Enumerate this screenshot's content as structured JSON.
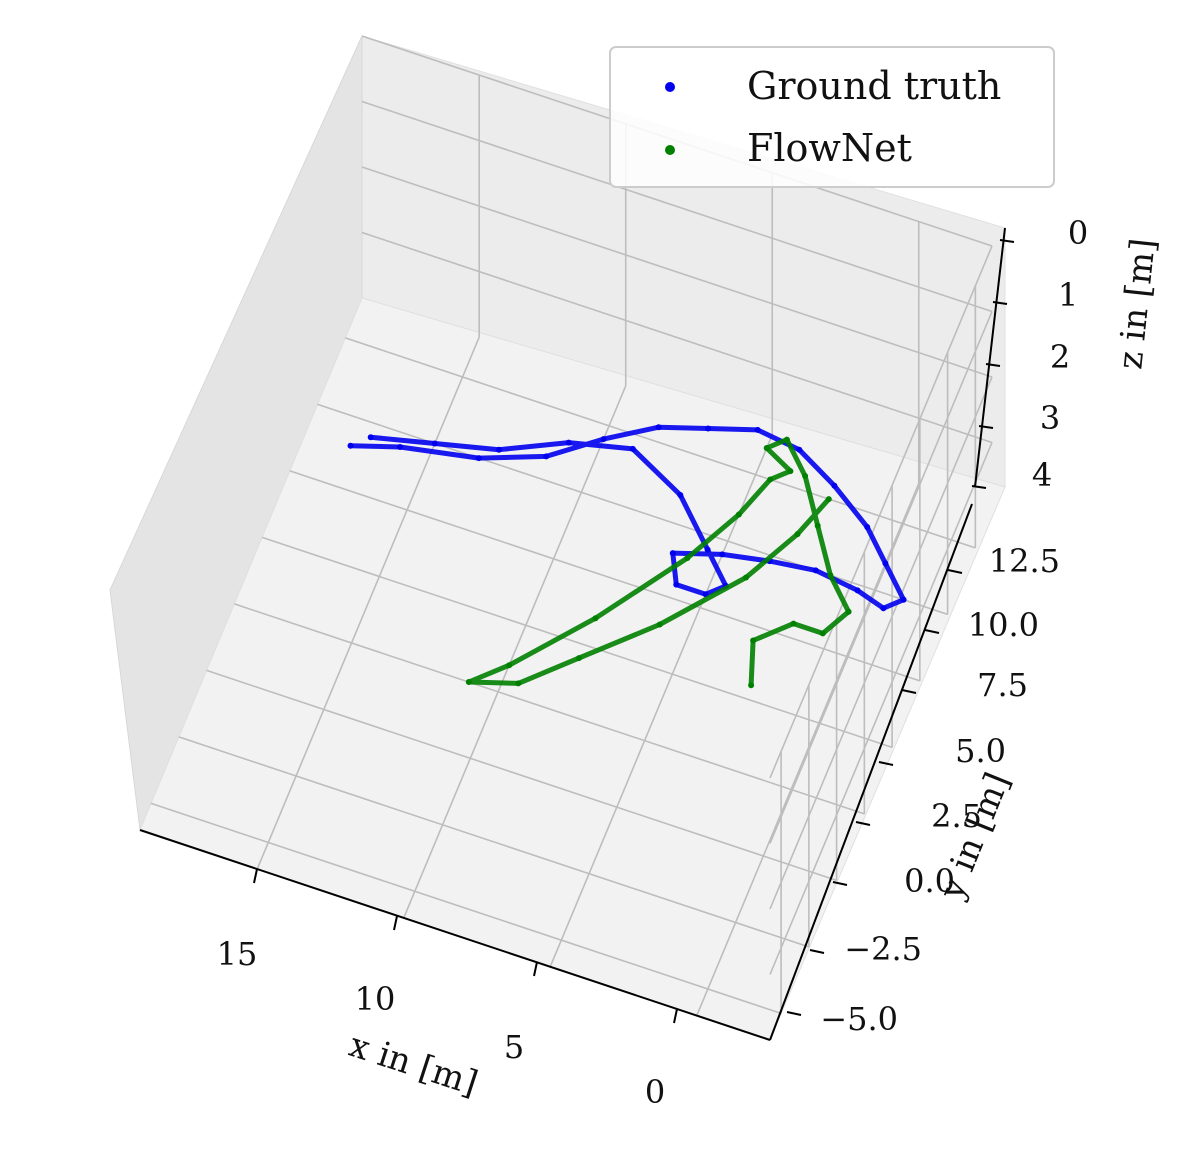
{
  "chart_data": {
    "type": "scatter",
    "projection": "3d",
    "title": "",
    "xlabel": "x in [m]",
    "ylabel": "y in [m]",
    "zlabel": "z in [m]",
    "xlim": [
      -2.5,
      19
    ],
    "ylim": [
      -6,
      14
    ],
    "zlim": [
      0,
      4
    ],
    "z_inverted": true,
    "grid": true,
    "legend_position": "top-right",
    "x_ticks": [
      "15",
      "10",
      "5",
      "0"
    ],
    "y_ticks": [
      "12.5",
      "10.0",
      "7.5",
      "5.0",
      "2.5",
      "0.0",
      "−2.5",
      "−5.0"
    ],
    "z_ticks": [
      "0",
      "1",
      "2",
      "3",
      "4"
    ],
    "series": [
      {
        "name": "Ground truth",
        "color": "#0000ee",
        "points": [
          [
            17.5,
            9.0,
            4.0
          ],
          [
            16.0,
            9.5,
            4.0
          ],
          [
            13.5,
            10.0,
            4.0
          ],
          [
            11.5,
            10.8,
            4.0
          ],
          [
            10.0,
            12.0,
            4.0
          ],
          [
            8.5,
            13.0,
            4.0
          ],
          [
            7.0,
            13.5,
            4.0
          ],
          [
            5.5,
            14.0,
            4.0
          ],
          [
            4.0,
            13.8,
            4.0
          ],
          [
            2.5,
            13.0,
            4.0
          ],
          [
            1.0,
            12.0,
            4.0
          ],
          [
            0.0,
            11.0,
            4.0
          ],
          [
            -1.0,
            10.0,
            4.0
          ],
          [
            -0.5,
            9.5,
            4.0
          ],
          [
            0.5,
            9.8,
            4.0
          ],
          [
            2.0,
            10.0,
            4.0
          ],
          [
            3.5,
            9.8,
            4.0
          ],
          [
            5.0,
            9.5,
            4.0
          ],
          [
            6.5,
            9.0,
            4.0
          ],
          [
            6.0,
            8.0,
            4.0
          ],
          [
            5.0,
            8.0,
            4.0
          ],
          [
            4.5,
            8.5,
            4.0
          ],
          [
            5.5,
            9.5,
            4.0
          ],
          [
            7.0,
            11.0,
            4.0
          ],
          [
            9.0,
            12.0,
            4.0
          ],
          [
            11.0,
            11.5,
            4.0
          ],
          [
            13.0,
            10.5,
            4.0
          ],
          [
            15.0,
            10.0,
            4.0
          ],
          [
            17.0,
            9.5,
            4.0
          ]
        ]
      },
      {
        "name": "FlowNet",
        "color": "#008000",
        "points": [
          [
            2.5,
            5.5,
            4.0
          ],
          [
            3.0,
            7.0,
            4.0
          ],
          [
            2.0,
            8.0,
            4.0
          ],
          [
            1.0,
            8.0,
            4.0
          ],
          [
            0.5,
            9.0,
            4.0
          ],
          [
            1.5,
            10.0,
            4.0
          ],
          [
            2.5,
            11.5,
            4.0
          ],
          [
            3.5,
            13.0,
            4.0
          ],
          [
            4.5,
            14.0,
            4.0
          ],
          [
            5.0,
            13.5,
            4.0
          ],
          [
            4.0,
            13.0,
            4.0
          ],
          [
            4.5,
            12.5,
            4.0
          ],
          [
            5.0,
            11.0,
            4.0
          ],
          [
            6.0,
            9.0,
            4.0
          ],
          [
            8.0,
            6.0,
            4.0
          ],
          [
            10.0,
            3.5,
            4.0
          ],
          [
            11.0,
            2.5,
            4.0
          ],
          [
            9.5,
            3.0,
            4.0
          ],
          [
            8.0,
            4.5,
            4.0
          ],
          [
            6.0,
            6.5,
            4.0
          ],
          [
            4.0,
            9.0,
            4.0
          ],
          [
            3.0,
            11.0,
            4.0
          ],
          [
            2.5,
            12.5,
            4.0
          ]
        ]
      }
    ]
  }
}
